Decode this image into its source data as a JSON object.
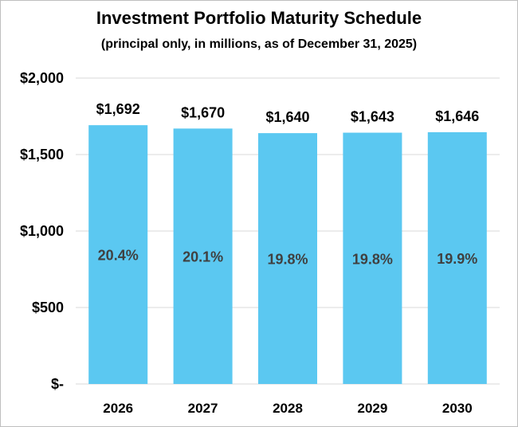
{
  "chart_data": {
    "type": "bar",
    "title": "Investment Portfolio Maturity Schedule",
    "subtitle": "(principal only, in millions, as of December 31, 2025)",
    "categories": [
      "2026",
      "2027",
      "2028",
      "2029",
      "2030"
    ],
    "values": [
      1692,
      1670,
      1640,
      1643,
      1646
    ],
    "value_labels": [
      "$1,692",
      "$1,670",
      "$1,640",
      "$1,643",
      "$1,646"
    ],
    "percent_labels": [
      "20.4%",
      "20.1%",
      "19.8%",
      "19.8%",
      "19.9%"
    ],
    "y_ticks": [
      0,
      500,
      1000,
      1500,
      2000
    ],
    "y_tick_labels": [
      "$-",
      "$500",
      "$1,000",
      "$1,500",
      "$2,000"
    ],
    "ylim": [
      0,
      2000
    ],
    "xlabel": "",
    "ylabel": "",
    "grid": true,
    "legend": "none",
    "bar_color": "#5bc8f1",
    "grid_color": "#d9d9d9"
  }
}
